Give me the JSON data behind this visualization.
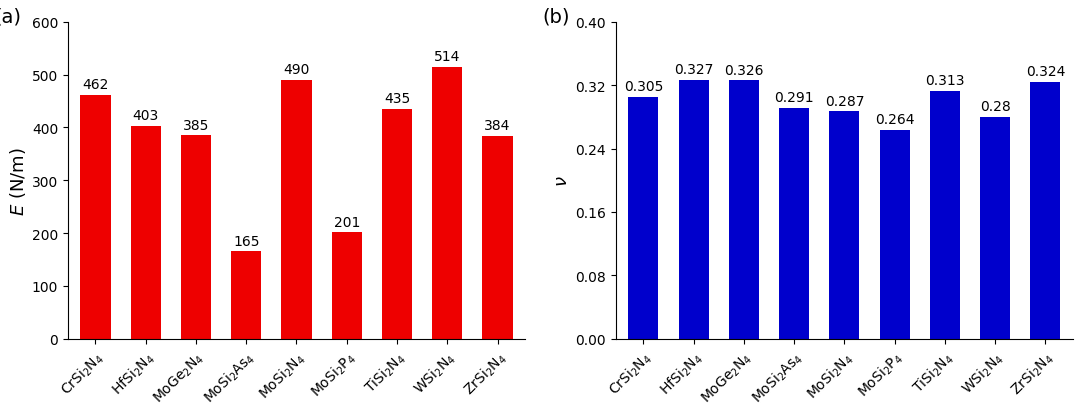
{
  "left": {
    "categories": [
      "CrSi$_2$N$_4$",
      "HfSi$_2$N$_4$",
      "MoGe$_2$N$_4$",
      "MoSi$_2$As$_4$",
      "MoSi$_2$N$_4$",
      "MoSi$_2$P$_4$",
      "TiSi$_2$N$_4$",
      "WSi$_2$N$_4$",
      "ZrSi$_2$N$_4$"
    ],
    "values": [
      462,
      403,
      385,
      165,
      490,
      201,
      435,
      514,
      384
    ],
    "bar_color": "#ee0000",
    "ylabel": "$E$ (N/m)",
    "ylim": [
      0,
      600
    ],
    "yticks": [
      0,
      100,
      200,
      300,
      400,
      500,
      600
    ],
    "panel_label": "(a)"
  },
  "right": {
    "categories": [
      "CrSi$_2$N$_4$",
      "HfSi$_2$N$_4$",
      "MoGe$_2$N$_4$",
      "MoSi$_2$As$_4$",
      "MoSi$_2$N$_4$",
      "MoSi$_2$P$_4$",
      "TiSi$_2$N$_4$",
      "WSi$_2$N$_4$",
      "ZrSi$_2$N$_4$"
    ],
    "values": [
      0.305,
      0.327,
      0.326,
      0.291,
      0.287,
      0.264,
      0.313,
      0.28,
      0.324
    ],
    "bar_color": "#0000cc",
    "ylabel": "$\\nu$",
    "ylim": [
      0,
      0.4
    ],
    "yticks": [
      0.0,
      0.08,
      0.16,
      0.24,
      0.32,
      0.4
    ],
    "panel_label": "(b)"
  },
  "background_color": "#ffffff",
  "tick_fontsize": 10,
  "label_fontsize": 13,
  "annotation_fontsize": 10
}
